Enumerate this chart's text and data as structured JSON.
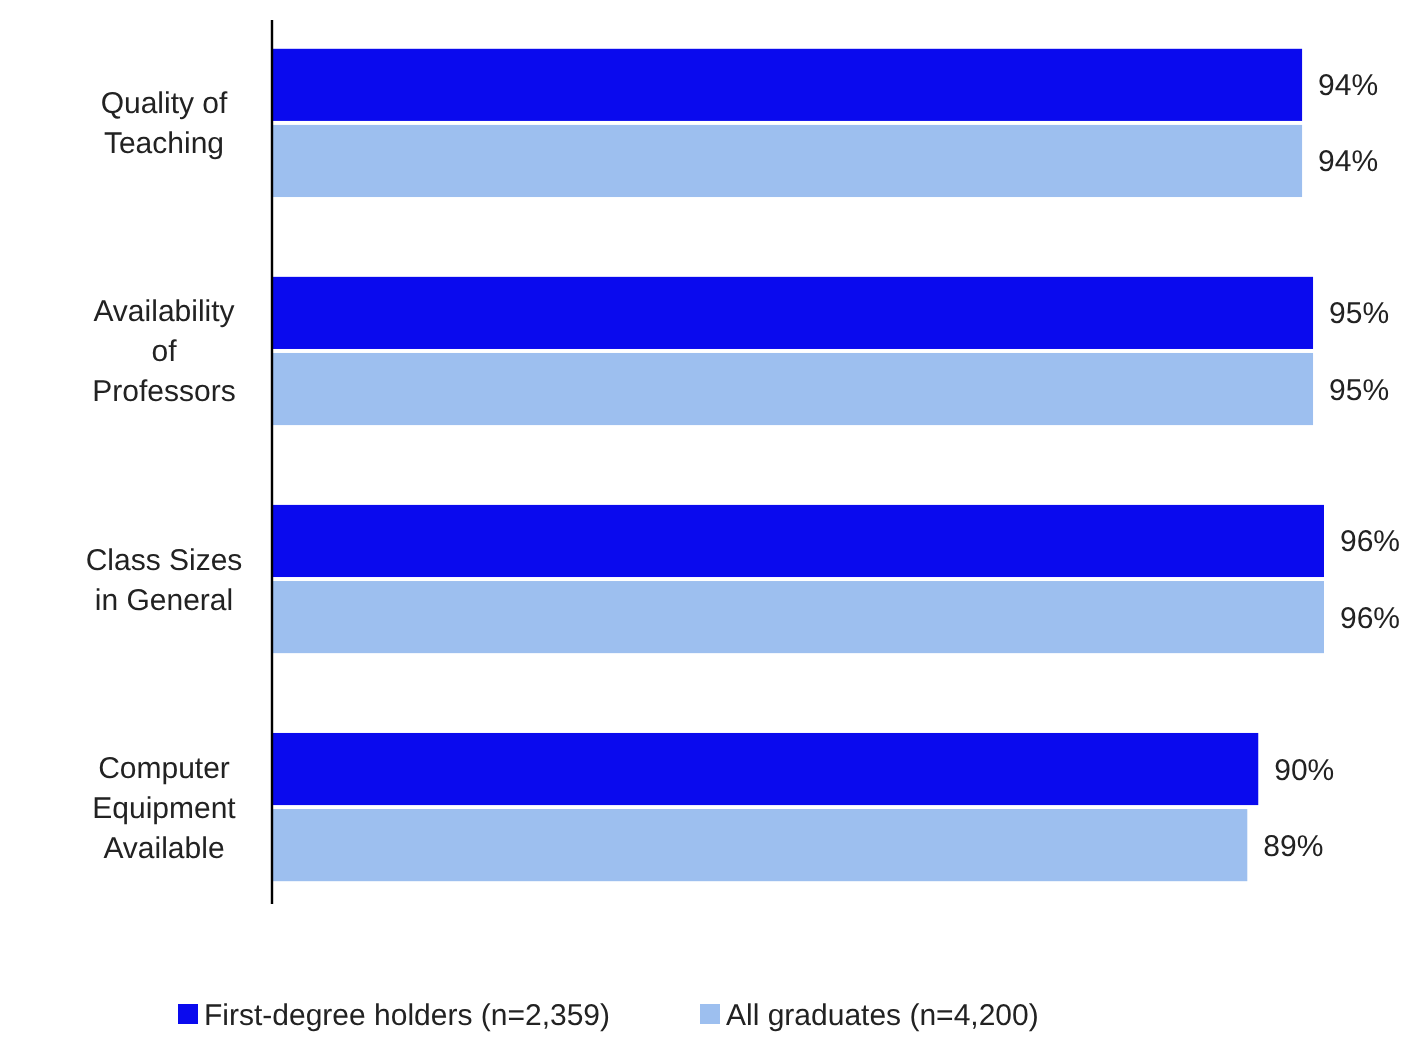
{
  "chart_data": {
    "type": "bar",
    "orientation": "horizontal",
    "categories": [
      "Quality of Teaching",
      "Availability of Professors",
      "Class Sizes in General",
      "Computer Equipment Available"
    ],
    "series": [
      {
        "name": "First-degree holders (n=2,359)",
        "color": "#0a0aee",
        "values": [
          94,
          95,
          96,
          90
        ],
        "value_labels": [
          "94%",
          "95%",
          "96%",
          "90%"
        ]
      },
      {
        "name": "All graduates (n=4,200)",
        "color": "#9dbfef",
        "values": [
          94,
          95,
          96,
          89
        ],
        "value_labels": [
          "94%",
          "95%",
          "96%",
          "89%"
        ]
      }
    ],
    "legend": "bottom"
  }
}
